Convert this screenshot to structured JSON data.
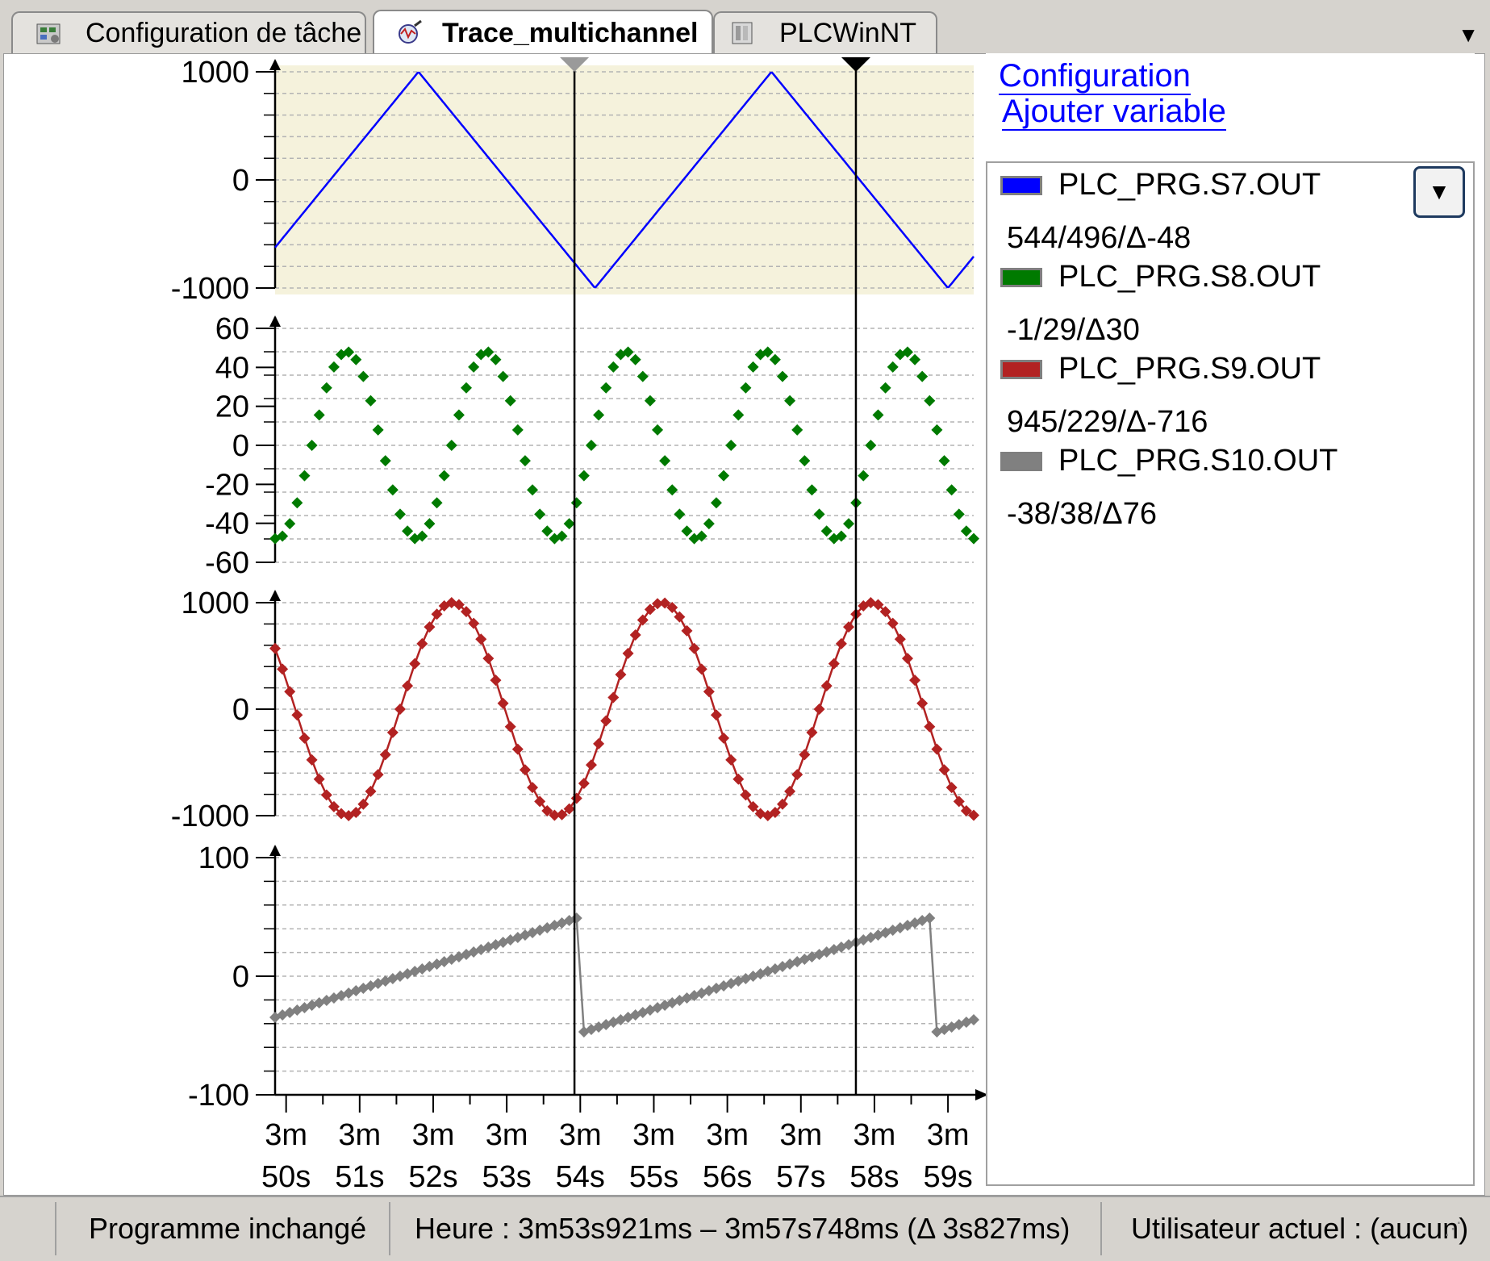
{
  "tabs": [
    {
      "label": "Configuration de tâche",
      "icon": "task-config-icon"
    },
    {
      "label": "Trace_multichannel",
      "icon": "trace-icon",
      "active": true,
      "closable": true
    },
    {
      "label": "PLCWinNT",
      "icon": "plc-device-icon"
    }
  ],
  "sidebar": {
    "config_link": "Configuration",
    "add_variable_link": "Ajouter variable",
    "variables": [
      {
        "name": "PLC_PRG.S7.OUT",
        "color": "#0000ff",
        "values": "544/496/Δ-48"
      },
      {
        "name": "PLC_PRG.S8.OUT",
        "color": "#007a00",
        "values": "-1/29/Δ30"
      },
      {
        "name": "PLC_PRG.S9.OUT",
        "color": "#b22222",
        "values": "945/229/Δ-716"
      },
      {
        "name": "PLC_PRG.S10.OUT",
        "color": "#808080",
        "values": "-38/38/Δ76"
      }
    ]
  },
  "status": {
    "program": "Programme inchangé",
    "time": "Heure : 3m53s921ms – 3m57s748ms (Δ 3s827ms)",
    "user": "Utilisateur actuel : (aucun)"
  },
  "chart_data": {
    "type": "line",
    "x_axis": {
      "unit": "s",
      "range": [
        169.85,
        179.35
      ],
      "ticks": [
        170,
        171,
        172,
        173,
        174,
        175,
        176,
        177,
        178,
        179
      ],
      "tick_labels_top": [
        "3m",
        "3m",
        "3m",
        "3m",
        "3m",
        "3m",
        "3m",
        "3m",
        "3m",
        "3m"
      ],
      "tick_labels_bottom": [
        "50s",
        "51s",
        "52s",
        "53s",
        "54s",
        "55s",
        "56s",
        "57s",
        "58s",
        "59s"
      ]
    },
    "cursors": [
      233.921,
      237.748
    ],
    "cursor_colors": [
      "#9a9a9a",
      "#000000"
    ],
    "panels": [
      {
        "series": "PLC_PRG.S7.OUT",
        "color": "#0000ff",
        "ylim": [
          -1000,
          1000
        ],
        "yticks": [
          1000,
          0,
          -1000
        ],
        "shape": "triangle",
        "period": 4.8,
        "phase_x": 171.8,
        "markers": false,
        "highlight": "#f5f2dc"
      },
      {
        "series": "PLC_PRG.S8.OUT",
        "color": "#007a00",
        "ylim": [
          -60,
          60
        ],
        "yticks": [
          60,
          40,
          20,
          0,
          -20,
          -40,
          -60
        ],
        "shape": "sine",
        "amplitude": 48,
        "period": 1.9,
        "phase_x": 170.35,
        "markers": true,
        "line": false
      },
      {
        "series": "PLC_PRG.S9.OUT",
        "color": "#b22222",
        "ylim": [
          -1000,
          1000
        ],
        "yticks": [
          1000,
          0,
          -1000
        ],
        "shape": "sine",
        "amplitude": 1000,
        "period": 2.85,
        "phase_x": 171.55,
        "markers": true,
        "line": true
      },
      {
        "series": "PLC_PRG.S10.OUT",
        "color": "#808080",
        "ylim": [
          -100,
          100
        ],
        "yticks": [
          100,
          0,
          -100
        ],
        "shape": "sawtooth",
        "min": -48,
        "max": 50,
        "period": 4.8,
        "reset_x": 174.0,
        "markers": true,
        "line": true
      }
    ]
  }
}
